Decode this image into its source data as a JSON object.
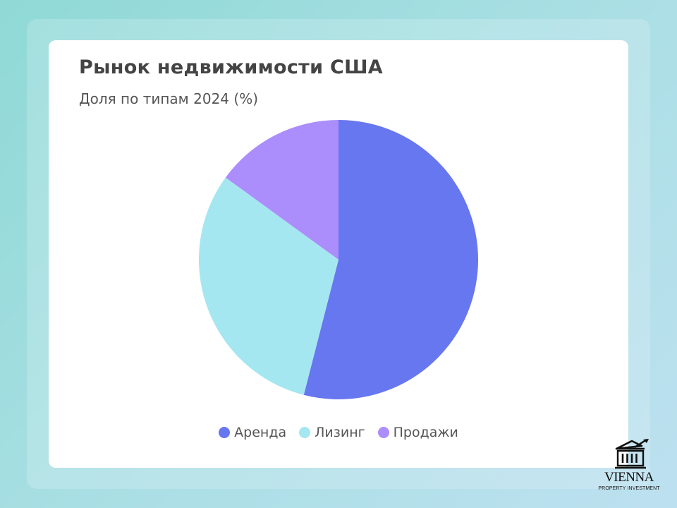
{
  "brand": {
    "name": "VIENNA",
    "tagline": "PROPERTY INVESTMENT",
    "icon": "bank-building-growth-icon"
  },
  "chart_data": {
    "type": "pie",
    "title": "Рынок недвижимости США",
    "subtitle": "Доля по типам 2024 (%)",
    "start_angle_deg": 0,
    "direction": "clockwise",
    "legend_position": "bottom",
    "slices": [
      {
        "label": "Аренда",
        "value": 54,
        "color": "#6777ef"
      },
      {
        "label": "Лизинг",
        "value": 31,
        "color": "#a5e7f0"
      },
      {
        "label": "Продажи",
        "value": 15,
        "color": "#ab8efb"
      }
    ]
  }
}
